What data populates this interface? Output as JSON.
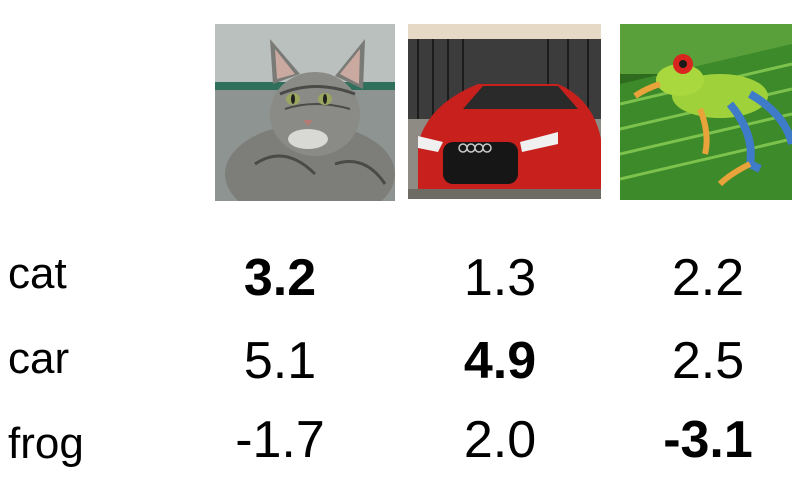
{
  "images": [
    {
      "name": "cat",
      "icon": "cat-photo"
    },
    {
      "name": "car",
      "icon": "car-photo"
    },
    {
      "name": "frog",
      "icon": "frog-photo"
    }
  ],
  "rows": [
    {
      "label": "cat",
      "scores": [
        "3.2",
        "1.3",
        "2.2"
      ],
      "bold": [
        true,
        false,
        false
      ]
    },
    {
      "label": "car",
      "scores": [
        "5.1",
        "4.9",
        "2.5"
      ],
      "bold": [
        false,
        true,
        false
      ]
    },
    {
      "label": "frog",
      "scores": [
        "-1.7",
        "2.0",
        "-3.1"
      ],
      "bold": [
        false,
        false,
        true
      ]
    }
  ]
}
